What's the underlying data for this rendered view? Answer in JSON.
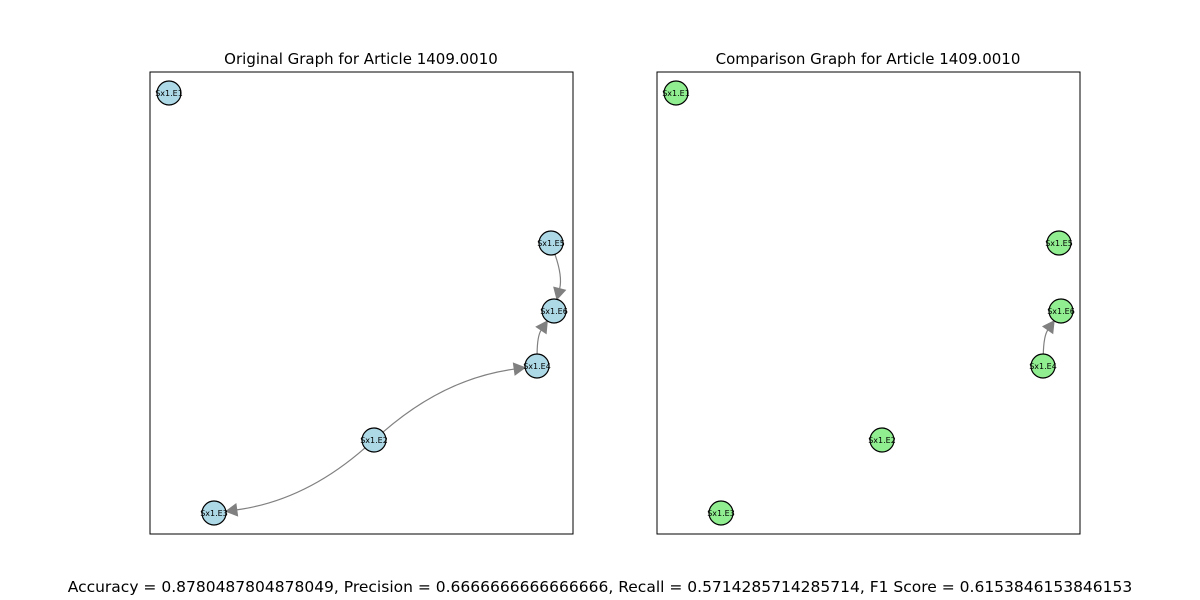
{
  "panels": [
    {
      "title": "Original Graph for Article 1409.0010",
      "node_color": "#add8e6",
      "nodes": [
        {
          "id": "S1",
          "label": "Sx1.E1"
        },
        {
          "id": "S5",
          "label": "Sx1.E5"
        },
        {
          "id": "S6",
          "label": "Sx1.E6"
        },
        {
          "id": "S4",
          "label": "Sx1.E4"
        },
        {
          "id": "S2",
          "label": "Sx1.E2"
        },
        {
          "id": "S3",
          "label": "Sx1.E3"
        }
      ],
      "edges": [
        {
          "from": "S5",
          "to": "S6"
        },
        {
          "from": "S4",
          "to": "S6"
        },
        {
          "from": "S2",
          "to": "S4"
        },
        {
          "from": "S2",
          "to": "S3"
        }
      ]
    },
    {
      "title": "Comparison Graph for Article 1409.0010",
      "node_color": "#90ee90",
      "nodes": [
        {
          "id": "S1",
          "label": "Sx1.E1"
        },
        {
          "id": "S5",
          "label": "Sx1.E5"
        },
        {
          "id": "S6",
          "label": "Sx1.E6"
        },
        {
          "id": "S4",
          "label": "Sx1.E4"
        },
        {
          "id": "S2",
          "label": "Sx1.E2"
        },
        {
          "id": "S3",
          "label": "Sx1.E3"
        }
      ],
      "edges": [
        {
          "from": "S4",
          "to": "S6"
        }
      ]
    }
  ],
  "edge_color": "#808080",
  "metrics_text": "Accuracy = 0.8780487804878049, Precision = 0.6666666666666666, Recall = 0.5714285714285714, F1 Score = 0.6153846153846153"
}
